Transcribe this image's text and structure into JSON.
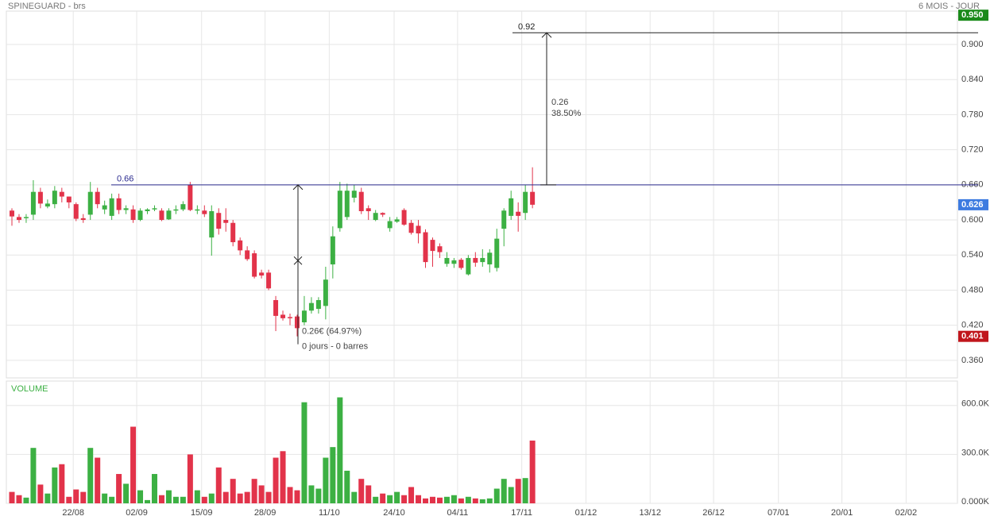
{
  "chart_data": [
    {
      "type": "candlestick",
      "title": "SPINEGUARD - brs",
      "subtitle": "6 MOIS - JOUR",
      "up_color": "#3cb043",
      "down_color": "#e2334a",
      "open": [
        0.616,
        0.605,
        0.603,
        0.609,
        0.648,
        0.623,
        0.627,
        0.648,
        0.64,
        0.627,
        0.603,
        0.609,
        0.648,
        0.618,
        0.607,
        0.637,
        0.617,
        0.618,
        0.6,
        0.615,
        0.618,
        0.616,
        0.601,
        0.616,
        0.618,
        0.66,
        0.616,
        0.616,
        0.57,
        0.612,
        0.6,
        0.595,
        0.565,
        0.548,
        0.543,
        0.51,
        0.51,
        0.463,
        0.438,
        0.434,
        0.435,
        0.425,
        0.445,
        0.448,
        0.453,
        0.524,
        0.586,
        0.605,
        0.638,
        0.648,
        0.62,
        0.6,
        0.612,
        0.586,
        0.597,
        0.617,
        0.595,
        0.59,
        0.579,
        0.566,
        0.555,
        0.525,
        0.525,
        0.532,
        0.507,
        0.535,
        0.528,
        0.524,
        0.518,
        0.585,
        0.607,
        0.614,
        0.612,
        0.648
      ],
      "high": [
        0.62,
        0.61,
        0.61,
        0.668,
        0.655,
        0.635,
        0.658,
        0.655,
        0.64,
        0.63,
        0.61,
        0.665,
        0.655,
        0.633,
        0.645,
        0.645,
        0.625,
        0.625,
        0.62,
        0.62,
        0.625,
        0.62,
        0.62,
        0.625,
        0.632,
        0.665,
        0.625,
        0.625,
        0.625,
        0.62,
        0.62,
        0.6,
        0.57,
        0.555,
        0.548,
        0.515,
        0.515,
        0.47,
        0.445,
        0.44,
        0.438,
        0.47,
        0.468,
        0.468,
        0.52,
        0.589,
        0.665,
        0.662,
        0.66,
        0.655,
        0.625,
        0.617,
        0.613,
        0.605,
        0.605,
        0.62,
        0.6,
        0.6,
        0.584,
        0.57,
        0.56,
        0.545,
        0.535,
        0.535,
        0.54,
        0.545,
        0.55,
        0.55,
        0.585,
        0.62,
        0.65,
        0.63,
        0.66,
        0.69
      ],
      "low": [
        0.59,
        0.595,
        0.595,
        0.6,
        0.62,
        0.62,
        0.62,
        0.63,
        0.62,
        0.598,
        0.595,
        0.6,
        0.62,
        0.61,
        0.6,
        0.61,
        0.61,
        0.595,
        0.598,
        0.61,
        0.615,
        0.598,
        0.6,
        0.61,
        0.615,
        0.615,
        0.61,
        0.605,
        0.539,
        0.575,
        0.58,
        0.555,
        0.54,
        0.53,
        0.5,
        0.5,
        0.48,
        0.41,
        0.428,
        0.42,
        0.401,
        0.42,
        0.44,
        0.44,
        0.43,
        0.5,
        0.58,
        0.6,
        0.63,
        0.61,
        0.6,
        0.598,
        0.605,
        0.58,
        0.595,
        0.59,
        0.575,
        0.56,
        0.518,
        0.52,
        0.535,
        0.52,
        0.518,
        0.515,
        0.505,
        0.52,
        0.52,
        0.51,
        0.512,
        0.555,
        0.6,
        0.58,
        0.6,
        0.62
      ],
      "close": [
        0.606,
        0.6,
        0.605,
        0.648,
        0.628,
        0.628,
        0.65,
        0.64,
        0.63,
        0.602,
        0.6,
        0.648,
        0.627,
        0.625,
        0.637,
        0.617,
        0.62,
        0.6,
        0.616,
        0.618,
        0.62,
        0.6,
        0.616,
        0.618,
        0.627,
        0.617,
        0.618,
        0.61,
        0.615,
        0.585,
        0.595,
        0.562,
        0.548,
        0.533,
        0.503,
        0.505,
        0.483,
        0.436,
        0.432,
        0.432,
        0.415,
        0.445,
        0.458,
        0.463,
        0.498,
        0.572,
        0.65,
        0.65,
        0.65,
        0.615,
        0.615,
        0.612,
        0.609,
        0.598,
        0.601,
        0.592,
        0.578,
        0.577,
        0.528,
        0.547,
        0.545,
        0.535,
        0.531,
        0.518,
        0.535,
        0.527,
        0.535,
        0.544,
        0.568,
        0.616,
        0.637,
        0.607,
        0.648,
        0.626
      ],
      "xlim": [
        -0.78,
        132.6
      ],
      "xticks": [
        {
          "value": 8.6,
          "label": "22/08"
        },
        {
          "value": 17.5,
          "label": "02/09"
        },
        {
          "value": 26.6,
          "label": "15/09"
        },
        {
          "value": 35.5,
          "label": "28/09"
        },
        {
          "value": 44.5,
          "label": "11/10"
        },
        {
          "value": 53.6,
          "label": "24/10"
        },
        {
          "value": 62.5,
          "label": "04/11"
        },
        {
          "value": 71.5,
          "label": "17/11"
        },
        {
          "value": 80.5,
          "label": "01/12"
        },
        {
          "value": 89.5,
          "label": "13/12"
        },
        {
          "value": 98.4,
          "label": "26/12"
        },
        {
          "value": 107.5,
          "label": "07/01"
        },
        {
          "value": 116.4,
          "label": "20/01"
        },
        {
          "value": 125.4,
          "label": "02/02"
        }
      ],
      "ylim": [
        0.33,
        0.957
      ],
      "yticks": [
        {
          "value": 0.9,
          "label": "0.900"
        },
        {
          "value": 0.84,
          "label": "0.840"
        },
        {
          "value": 0.78,
          "label": "0.780"
        },
        {
          "value": 0.72,
          "label": "0.720"
        },
        {
          "value": 0.66,
          "label": "0.660"
        },
        {
          "value": 0.6,
          "label": "0.600"
        },
        {
          "value": 0.54,
          "label": "0.540"
        },
        {
          "value": 0.48,
          "label": "0.480"
        },
        {
          "value": 0.42,
          "label": "0.420"
        },
        {
          "value": 0.36,
          "label": "0.360"
        }
      ],
      "price_tags": [
        {
          "value": 0.95,
          "label": "0.950",
          "color": "#1a8a1a"
        },
        {
          "value": 0.626,
          "label": "0.626",
          "color": "#3d7be0"
        },
        {
          "value": 0.401,
          "label": "0.401",
          "color": "#c0161c"
        }
      ],
      "hlines": [
        {
          "value": 0.66,
          "label": "0.66",
          "color": "#2b2b8f"
        },
        {
          "value": 0.92,
          "label": "0.92",
          "color": "#222"
        }
      ],
      "measures": [
        {
          "from": 0.66,
          "to": 0.92,
          "labels": [
            "0.26",
            "38.50%"
          ]
        },
        {
          "from": 0.401,
          "to": 0.66,
          "labels": [
            "0.26€ (64.97%)",
            "0 jours - 0 barres"
          ]
        }
      ],
      "grid": true
    },
    {
      "type": "volume",
      "title": "VOLUME",
      "values": [
        70000,
        50000,
        35000,
        340000,
        115000,
        60000,
        220000,
        240000,
        40000,
        85000,
        70000,
        340000,
        280000,
        60000,
        40000,
        180000,
        120000,
        470000,
        80000,
        20000,
        180000,
        50000,
        80000,
        40000,
        40000,
        300000,
        80000,
        40000,
        60000,
        220000,
        70000,
        150000,
        60000,
        70000,
        150000,
        110000,
        70000,
        280000,
        320000,
        100000,
        80000,
        620000,
        110000,
        90000,
        280000,
        345000,
        650000,
        200000,
        70000,
        150000,
        110000,
        40000,
        60000,
        50000,
        70000,
        50000,
        100000,
        50000,
        30000,
        40000,
        35000,
        40000,
        50000,
        30000,
        40000,
        30000,
        25000,
        30000,
        90000,
        150000,
        100000,
        150000,
        155000,
        385000
      ],
      "ylim": [
        0,
        750000
      ],
      "yticks": [
        {
          "value": 0,
          "label": "0.000K"
        },
        {
          "value": 300000,
          "label": "300.0K"
        },
        {
          "value": 600000,
          "label": "600.0K"
        }
      ],
      "grid": true
    }
  ]
}
